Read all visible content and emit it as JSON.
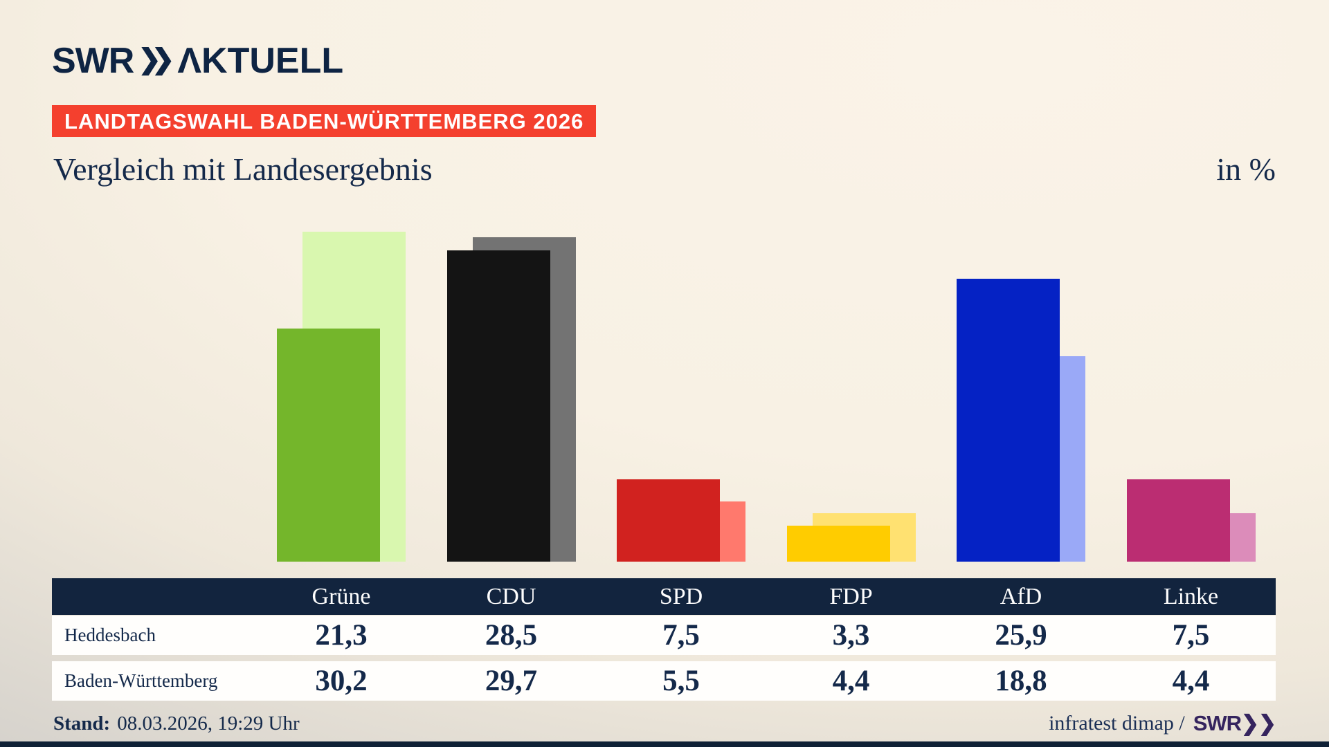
{
  "brand": {
    "swr": "SWR",
    "chevrons": "❯❯",
    "aktuell": "ΛKTUELL"
  },
  "badge": {
    "label": "LANDTAGSWAHL BADEN-WÜRTTEMBERG 2026",
    "bg": "#f4402e"
  },
  "title": "Vergleich mit Landesergebnis",
  "unit_label": "in %",
  "chart_data": {
    "type": "bar",
    "categories": [
      "Grüne",
      "CDU",
      "SPD",
      "FDP",
      "AfD",
      "Linke"
    ],
    "series": [
      {
        "name": "Heddesbach",
        "values": [
          21.3,
          28.5,
          7.5,
          3.3,
          25.9,
          7.5
        ],
        "colors": [
          "#74b62b",
          "#141414",
          "#d1221f",
          "#ffcc00",
          "#0522c4",
          "#bb2d72"
        ]
      },
      {
        "name": "Baden-Württemberg",
        "values": [
          30.2,
          29.7,
          5.5,
          4.4,
          18.8,
          4.4
        ],
        "colors": [
          "#d9f7af",
          "#737373",
          "#ff796d",
          "#ffe171",
          "#9aa9f7",
          "#dc8cba"
        ]
      }
    ],
    "title": "Vergleich mit Landesergebnis",
    "xlabel": "",
    "ylabel": "in %",
    "ylim": [
      0,
      32
    ],
    "grid": false,
    "legend_position": "table-row-labels",
    "value_format": "decimal-comma, one decimal"
  },
  "footer": {
    "stand_label": "Stand:",
    "stand_value": "08.03.2026, 19:29 Uhr",
    "source_text": "infratest dimap /",
    "source_brand": "SWR❯❯"
  }
}
